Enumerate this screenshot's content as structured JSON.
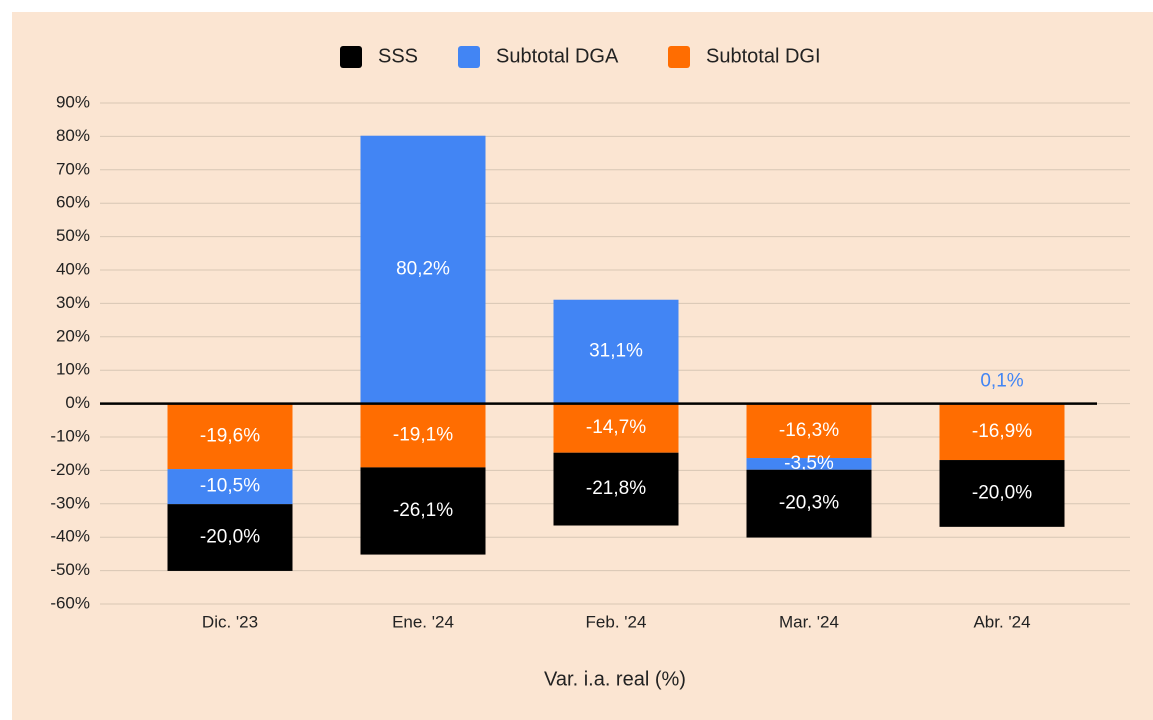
{
  "chart_data": {
    "type": "stacked_bar",
    "categories": [
      "Dic. '23",
      "Ene. '24",
      "Feb. '24",
      "Mar. '24",
      "Abr. '24"
    ],
    "series": [
      {
        "name": "SSS",
        "color": "#000000",
        "values": [
          -20.0,
          -26.1,
          -21.8,
          -20.3,
          -20.0
        ],
        "value_labels": [
          "-20,0%",
          "-26,1%",
          "-21,8%",
          "-20,3%",
          "-20,0%"
        ]
      },
      {
        "name": "Subtotal DGA",
        "color": "#4285f4",
        "values": [
          -10.5,
          80.2,
          31.1,
          -3.5,
          0.1
        ],
        "value_labels": [
          "-10,5%",
          "80,2%",
          "31,1%",
          "-3,5%",
          "0,1%"
        ]
      },
      {
        "name": "Subtotal DGI",
        "color": "#ff6d01",
        "values": [
          -19.6,
          -19.1,
          -14.7,
          -16.3,
          -16.9
        ],
        "value_labels": [
          "-19,6%",
          "-19,1%",
          "-14,7%",
          "-16,3%",
          "-16,9%"
        ]
      }
    ],
    "xlabel": "Var. i.a. real (%)",
    "ylim": [
      -60,
      90
    ],
    "yticks": [
      {
        "value": -60,
        "label": "-60%"
      },
      {
        "value": -50,
        "label": "-50%"
      },
      {
        "value": -40,
        "label": "-40%"
      },
      {
        "value": -30,
        "label": "-30%"
      },
      {
        "value": -20,
        "label": "-20%"
      },
      {
        "value": -10,
        "label": "-10%"
      },
      {
        "value": 0,
        "label": "0%"
      },
      {
        "value": 10,
        "label": "10%"
      },
      {
        "value": 20,
        "label": "20%"
      },
      {
        "value": 30,
        "label": "30%"
      },
      {
        "value": 40,
        "label": "40%"
      },
      {
        "value": 50,
        "label": "50%"
      },
      {
        "value": 60,
        "label": "60%"
      },
      {
        "value": 70,
        "label": "70%"
      },
      {
        "value": 80,
        "label": "80%"
      },
      {
        "value": 90,
        "label": "90%"
      }
    ],
    "grid": true,
    "legend": "top"
  }
}
